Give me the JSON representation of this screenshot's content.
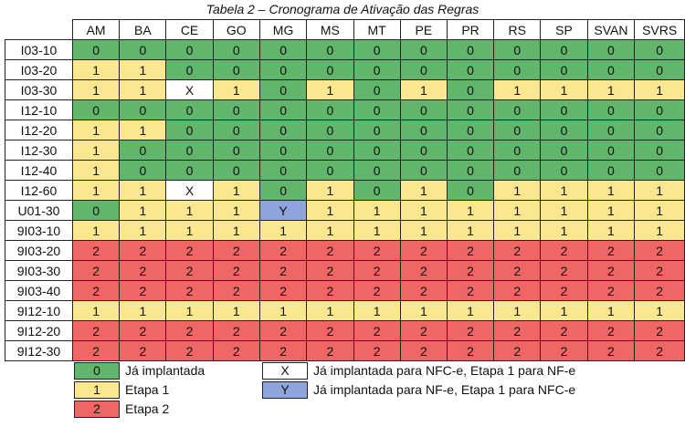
{
  "title": "Tabela 2 – Cronograma de Ativação das Regras",
  "columns": [
    "AM",
    "BA",
    "CE",
    "GO",
    "MG",
    "MS",
    "MT",
    "PE",
    "PR",
    "RS",
    "SP",
    "SVAN",
    "SVRS"
  ],
  "rows": [
    {
      "label": "I03-10",
      "values": [
        "0",
        "0",
        "0",
        "0",
        "0",
        "0",
        "0",
        "0",
        "0",
        "0",
        "0",
        "0",
        "0"
      ]
    },
    {
      "label": "I03-20",
      "values": [
        "1",
        "1",
        "0",
        "0",
        "0",
        "0",
        "0",
        "0",
        "0",
        "0",
        "0",
        "0",
        "0"
      ]
    },
    {
      "label": "I03-30",
      "values": [
        "1",
        "1",
        "X",
        "1",
        "0",
        "1",
        "0",
        "1",
        "0",
        "1",
        "1",
        "1",
        "1"
      ]
    },
    {
      "label": "I12-10",
      "values": [
        "0",
        "0",
        "0",
        "0",
        "0",
        "0",
        "0",
        "0",
        "0",
        "0",
        "0",
        "0",
        "0"
      ]
    },
    {
      "label": "I12-20",
      "values": [
        "1",
        "1",
        "0",
        "0",
        "0",
        "0",
        "0",
        "0",
        "0",
        "0",
        "0",
        "0",
        "0"
      ]
    },
    {
      "label": "I12-30",
      "values": [
        "1",
        "0",
        "0",
        "0",
        "0",
        "0",
        "0",
        "0",
        "0",
        "0",
        "0",
        "0",
        "0"
      ]
    },
    {
      "label": "I12-40",
      "values": [
        "1",
        "0",
        "0",
        "0",
        "0",
        "0",
        "0",
        "0",
        "0",
        "0",
        "0",
        "0",
        "0"
      ]
    },
    {
      "label": "I12-60",
      "values": [
        "1",
        "1",
        "X",
        "1",
        "0",
        "1",
        "0",
        "1",
        "0",
        "1",
        "1",
        "1",
        "1"
      ]
    },
    {
      "label": "U01-30",
      "values": [
        "0",
        "1",
        "1",
        "1",
        "Y",
        "1",
        "1",
        "1",
        "1",
        "1",
        "1",
        "1",
        "1"
      ]
    },
    {
      "label": "9I03-10",
      "values": [
        "1",
        "1",
        "1",
        "1",
        "1",
        "1",
        "1",
        "1",
        "1",
        "1",
        "1",
        "1",
        "1"
      ]
    },
    {
      "label": "9I03-20",
      "values": [
        "2",
        "2",
        "2",
        "2",
        "2",
        "2",
        "2",
        "2",
        "2",
        "2",
        "2",
        "2",
        "2"
      ]
    },
    {
      "label": "9I03-30",
      "values": [
        "2",
        "2",
        "2",
        "2",
        "2",
        "2",
        "2",
        "2",
        "2",
        "2",
        "2",
        "2",
        "2"
      ]
    },
    {
      "label": "9I03-40",
      "values": [
        "2",
        "2",
        "2",
        "2",
        "2",
        "2",
        "2",
        "2",
        "2",
        "2",
        "2",
        "2",
        "2"
      ]
    },
    {
      "label": "9I12-10",
      "values": [
        "1",
        "1",
        "1",
        "1",
        "1",
        "1",
        "1",
        "1",
        "1",
        "1",
        "1",
        "1",
        "1"
      ]
    },
    {
      "label": "9I12-20",
      "values": [
        "2",
        "2",
        "2",
        "2",
        "2",
        "2",
        "2",
        "2",
        "2",
        "2",
        "2",
        "2",
        "2"
      ]
    },
    {
      "label": "9I12-30",
      "values": [
        "2",
        "2",
        "2",
        "2",
        "2",
        "2",
        "2",
        "2",
        "2",
        "2",
        "2",
        "2",
        "2"
      ]
    }
  ],
  "legend": [
    {
      "code": "0",
      "text": "Já implantada",
      "color": "#62b66c"
    },
    {
      "code": "1",
      "text": "Etapa 1",
      "color": "#fbe78f"
    },
    {
      "code": "2",
      "text": "Etapa 2",
      "color": "#ef6664"
    },
    {
      "code": "X",
      "text": "Já implantada para NFC-e, Etapa 1 para NF-e",
      "color": "#ffffff"
    },
    {
      "code": "Y",
      "text": "Já implantada para NF-e, Etapa 1 para NFC-e",
      "color": "#8fa4dc"
    }
  ]
}
